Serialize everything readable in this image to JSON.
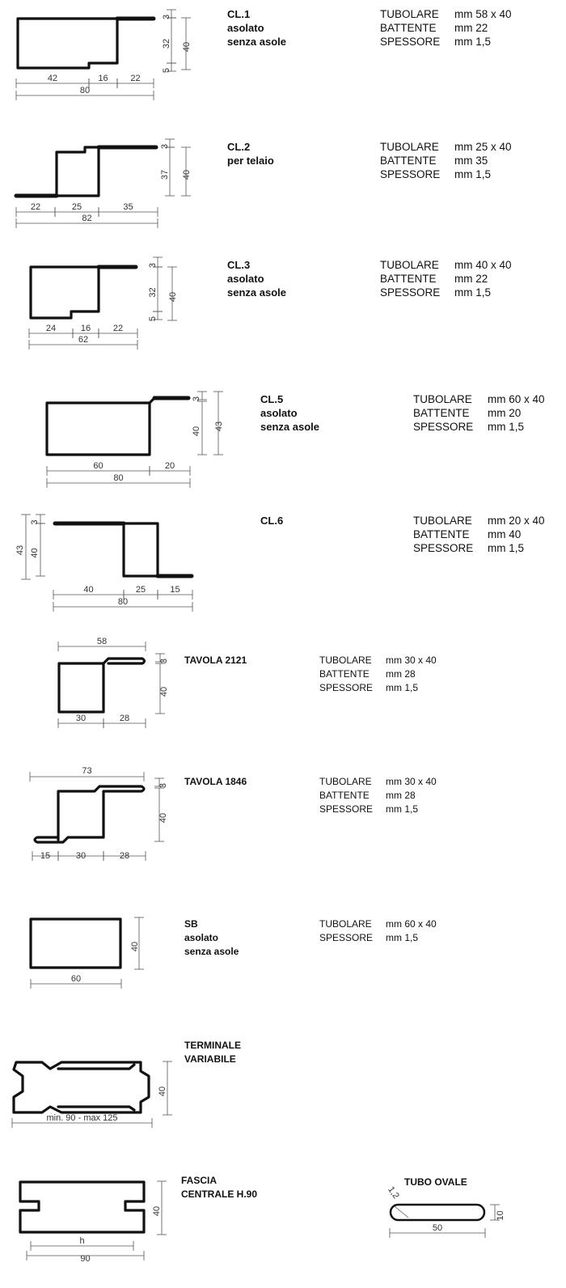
{
  "profiles": [
    {
      "name": "CL.1",
      "desc": [
        "asolato",
        "senza asole"
      ],
      "specs": [
        {
          "label": "TUBOLARE",
          "value": "mm 58 x 40"
        },
        {
          "label": "BATTENTE",
          "value": "mm 22"
        },
        {
          "label": "SPESSORE",
          "value": "mm 1,5"
        }
      ],
      "dims": [
        "3",
        "32",
        "5",
        "40",
        "42",
        "16",
        "22",
        "80"
      ]
    },
    {
      "name": "CL.2",
      "desc": [
        "per telaio"
      ],
      "specs": [
        {
          "label": "TUBOLARE",
          "value": "mm 25 x 40"
        },
        {
          "label": "BATTENTE",
          "value": "mm 35"
        },
        {
          "label": "SPESSORE",
          "value": "mm 1,5"
        }
      ],
      "dims": [
        "3",
        "37",
        "40",
        "22",
        "25",
        "35",
        "82"
      ]
    },
    {
      "name": "CL.3",
      "desc": [
        "asolato",
        "senza asole"
      ],
      "specs": [
        {
          "label": "TUBOLARE",
          "value": "mm 40 x 40"
        },
        {
          "label": "BATTENTE",
          "value": "mm 22"
        },
        {
          "label": "SPESSORE",
          "value": "mm 1,5"
        }
      ],
      "dims": [
        "3",
        "32",
        "5",
        "40",
        "24",
        "16",
        "22",
        "62"
      ]
    },
    {
      "name": "CL.5",
      "desc": [
        "asolato",
        "senza asole"
      ],
      "specs": [
        {
          "label": "TUBOLARE",
          "value": "mm 60 x 40"
        },
        {
          "label": "BATTENTE",
          "value": "mm 20"
        },
        {
          "label": "SPESSORE",
          "value": "mm 1,5"
        }
      ],
      "dims": [
        "3",
        "40",
        "43",
        "60",
        "20",
        "80"
      ]
    },
    {
      "name": "CL.6",
      "desc": [],
      "specs": [
        {
          "label": "TUBOLARE",
          "value": "mm 20 x 40"
        },
        {
          "label": "BATTENTE",
          "value": "mm 40"
        },
        {
          "label": "SPESSORE",
          "value": "mm 1,5"
        }
      ],
      "dims": [
        "43",
        "3",
        "40",
        "40",
        "25",
        "15",
        "80"
      ]
    },
    {
      "name": "TAVOLA 2121",
      "desc": [],
      "specs": [
        {
          "label": "TUBOLARE",
          "value": "mm 30 x 40"
        },
        {
          "label": "BATTENTE",
          "value": "mm 28"
        },
        {
          "label": "SPESSORE",
          "value": "mm 1,5"
        }
      ],
      "dims": [
        "58",
        "3",
        "40",
        "30",
        "28"
      ]
    },
    {
      "name": "TAVOLA 1846",
      "desc": [],
      "specs": [
        {
          "label": "TUBOLARE",
          "value": "mm 30 x 40"
        },
        {
          "label": "BATTENTE",
          "value": "mm 28"
        },
        {
          "label": "SPESSORE",
          "value": "mm 1,5"
        }
      ],
      "dims": [
        "73",
        "3",
        "40",
        "15",
        "30",
        "28"
      ]
    },
    {
      "name": "SB",
      "desc": [
        "asolato",
        "senza asole"
      ],
      "specs": [
        {
          "label": "TUBOLARE",
          "value": "mm 60 x 40"
        },
        {
          "label": "SPESSORE",
          "value": "mm 1,5"
        }
      ],
      "dims": [
        "40",
        "60"
      ]
    },
    {
      "name": "TERMINALE",
      "desc": [
        "VARIABILE"
      ],
      "specs": [],
      "dims": [
        "40",
        "min. 90 - max 125"
      ]
    },
    {
      "name": "FASCIA",
      "desc": [
        "CENTRALE H.90"
      ],
      "specs": [],
      "dims": [
        "40",
        "h",
        "90"
      ]
    },
    {
      "name": "TUBO OVALE",
      "desc": [],
      "specs": [],
      "dims": [
        "1,2",
        "10",
        "50"
      ]
    }
  ]
}
